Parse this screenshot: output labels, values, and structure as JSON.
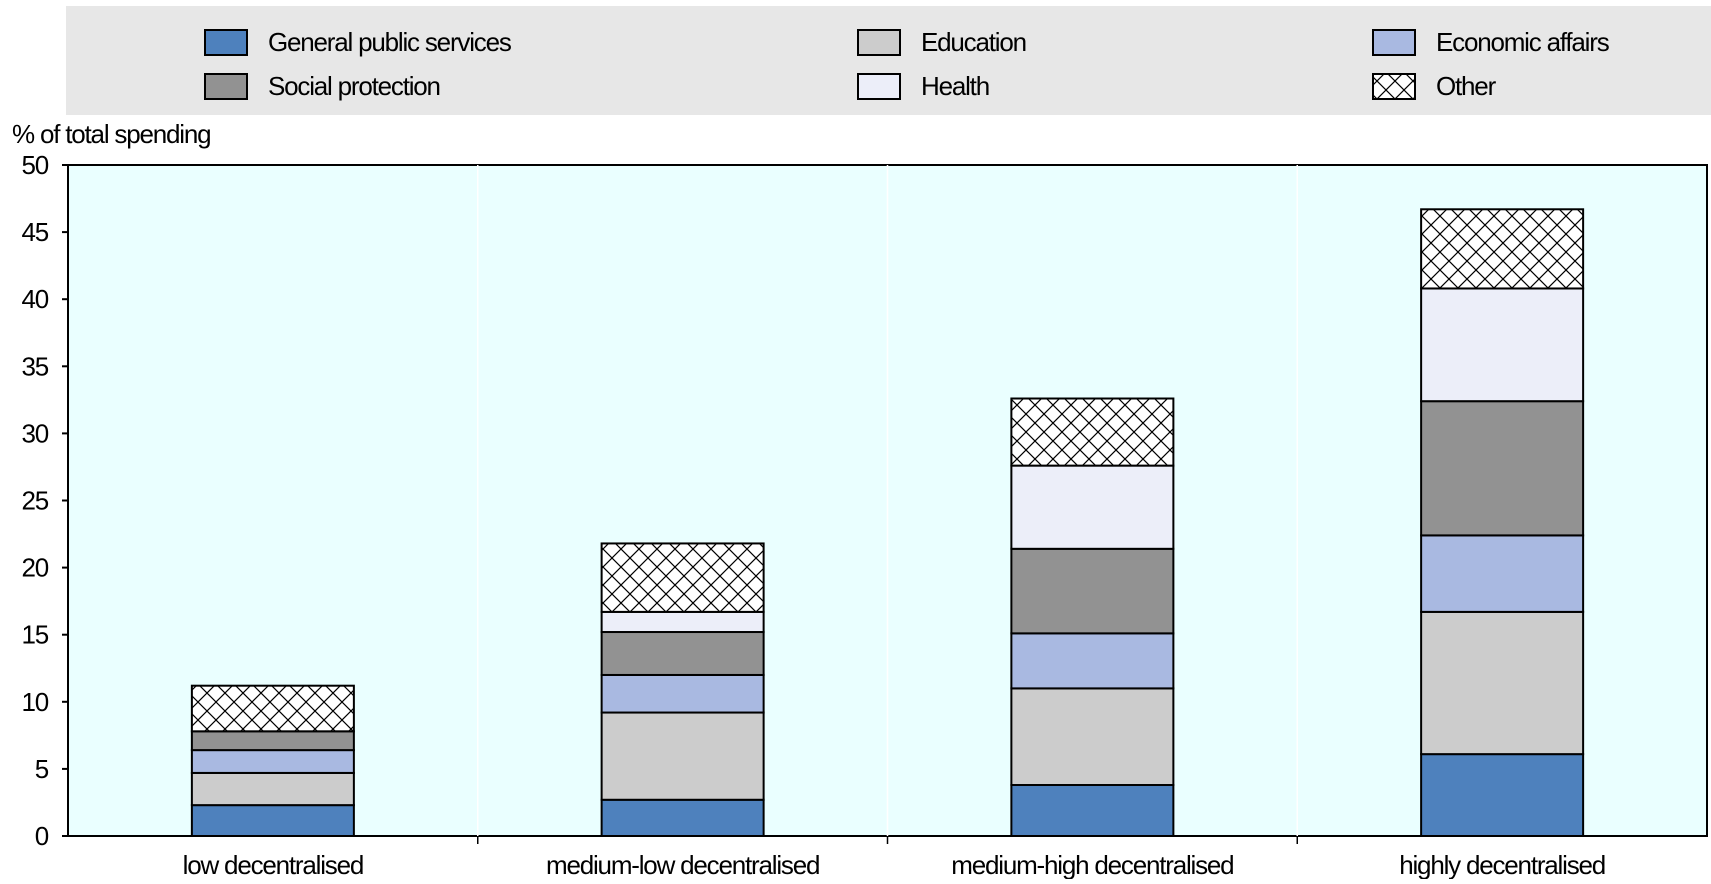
{
  "chart_data": {
    "type": "bar",
    "stacked": true,
    "ylabel": "% of total spending",
    "ylim": [
      0,
      50
    ],
    "yticks": [
      0,
      5,
      10,
      15,
      20,
      25,
      30,
      35,
      40,
      45,
      50
    ],
    "grid": false,
    "legend_position": "top",
    "categories": [
      "low decentralised",
      "medium-low decentralised",
      "medium-high decentralised",
      "highly decentralised"
    ],
    "series": [
      {
        "name": "General public services",
        "values": [
          2.3,
          2.7,
          3.8,
          6.1
        ],
        "color": "#4e81bd",
        "pattern": "solid"
      },
      {
        "name": "Education",
        "values": [
          2.4,
          6.5,
          7.2,
          10.6
        ],
        "color": "#cccccc",
        "pattern": "solid"
      },
      {
        "name": "Economic affairs",
        "values": [
          1.7,
          2.8,
          4.1,
          5.7
        ],
        "color": "#a9b9e1",
        "pattern": "solid"
      },
      {
        "name": "Social protection",
        "values": [
          1.4,
          3.2,
          6.3,
          10.0
        ],
        "color": "#929292",
        "pattern": "solid"
      },
      {
        "name": "Health",
        "values": [
          0.0,
          1.5,
          6.2,
          8.4
        ],
        "color": "#eceef9",
        "pattern": "solid"
      },
      {
        "name": "Other",
        "values": [
          3.4,
          5.1,
          5.0,
          5.9
        ],
        "color": "#ffffff",
        "pattern": "crosshatch"
      }
    ],
    "colors": {
      "plot_background": "#eaffff",
      "legend_background": "#e7e7e7"
    }
  }
}
